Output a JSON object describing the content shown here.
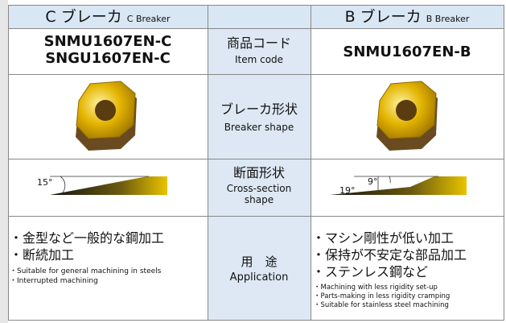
{
  "header": {
    "left": {
      "title": "C ブレーカ",
      "subtitle": "C Breaker"
    },
    "right": {
      "title": "B ブレーカ",
      "subtitle": "B Breaker"
    }
  },
  "rows": [
    {
      "label_ja": "商品コード",
      "label_en": "Item code",
      "left": [
        "SNMU1607EN-C",
        "SNGU1607EN-C"
      ],
      "right": [
        "SNMU1607EN-B"
      ]
    },
    {
      "label_ja": "ブレーカ形状",
      "label_en": "Breaker shape"
    },
    {
      "label_ja": "断面形状",
      "label_en": [
        "Cross-section",
        "shape"
      ],
      "left_angles": [
        "15°"
      ],
      "right_angles": [
        "9°",
        "19°"
      ]
    },
    {
      "label_ja": "用　途",
      "label_en": "Application",
      "left_ja": [
        "・金型など一般的な鋼加工",
        "・断続加工"
      ],
      "left_en": [
        "・Suitable for general machining in steels",
        "・Interrupted machining"
      ],
      "right_ja": [
        "・マシン剛性が低い加工",
        "・保持が不安定な部品加工",
        "・ステンレス鋼など"
      ],
      "right_en": [
        "・Machining with less rigidity set-up",
        "・Parts-making in less rigidity cramping",
        "・Suitable for stainless steel machining"
      ]
    }
  ]
}
